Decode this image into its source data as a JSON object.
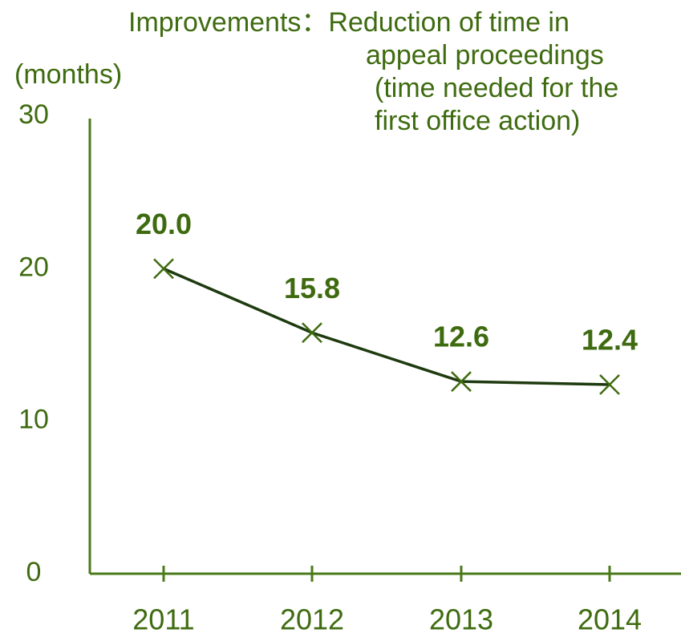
{
  "chart_data": {
    "type": "line",
    "title": [
      "Improvements：Reduction of time in",
      "appeal proceedings",
      "(time needed for the",
      "first office action)"
    ],
    "y_label": "(months)",
    "categories": [
      "2011",
      "2012",
      "2013",
      "2014"
    ],
    "series": [
      {
        "name": null,
        "color": "#1e3a0f",
        "marker_color": "#3f6b10",
        "values": [
          20.0,
          15.8,
          12.6,
          12.4
        ],
        "value_labels": [
          "20.0",
          "15.8",
          "12.6",
          "12.4"
        ]
      }
    ],
    "ylim": [
      0,
      30
    ],
    "yticks": [
      0,
      10,
      20,
      30
    ],
    "grid": false,
    "axis_color": "#4a7a1a",
    "text_color": "#3f6b10"
  }
}
